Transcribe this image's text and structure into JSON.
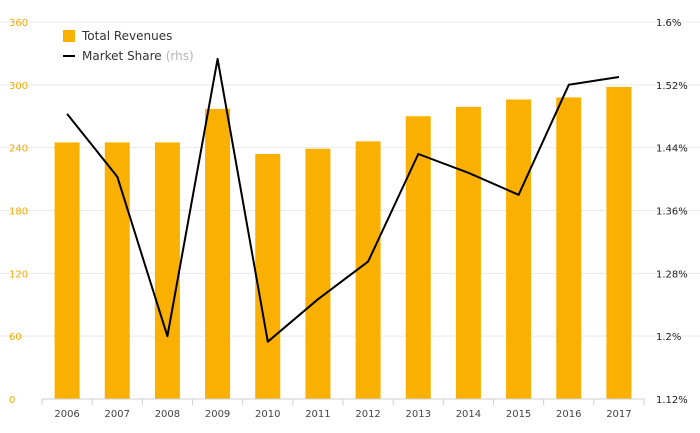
{
  "chart_data": {
    "type": "bar",
    "categories": [
      "2006",
      "2007",
      "2008",
      "2009",
      "2010",
      "2011",
      "2012",
      "2013",
      "2014",
      "2015",
      "2016",
      "2017"
    ],
    "series": [
      {
        "name": "Total Revenues",
        "type": "bar",
        "axis": "left",
        "color": "#f9b000",
        "values": [
          245,
          245,
          245,
          277,
          234,
          239,
          246,
          270,
          279,
          286,
          288,
          298
        ]
      },
      {
        "name": "Market Share",
        "note": "(rhs)",
        "type": "line",
        "axis": "right",
        "color": "#000000",
        "values": [
          1.483,
          1.403,
          1.2,
          1.553,
          1.193,
          1.247,
          1.295,
          1.432,
          1.408,
          1.38,
          1.52,
          1.53
        ]
      }
    ],
    "left_axis": {
      "ylim": [
        0,
        360
      ],
      "ticks": [
        "0",
        "60",
        "120",
        "180",
        "240",
        "300",
        "360"
      ],
      "color": "#f5a800"
    },
    "right_axis": {
      "ylim": [
        1.12,
        1.6
      ],
      "ticks": [
        "1.12%",
        "1.2%",
        "1.28%",
        "1.36%",
        "1.44%",
        "1.52%",
        "1.6%"
      ]
    },
    "grid": true,
    "legend_position": "top-left"
  }
}
